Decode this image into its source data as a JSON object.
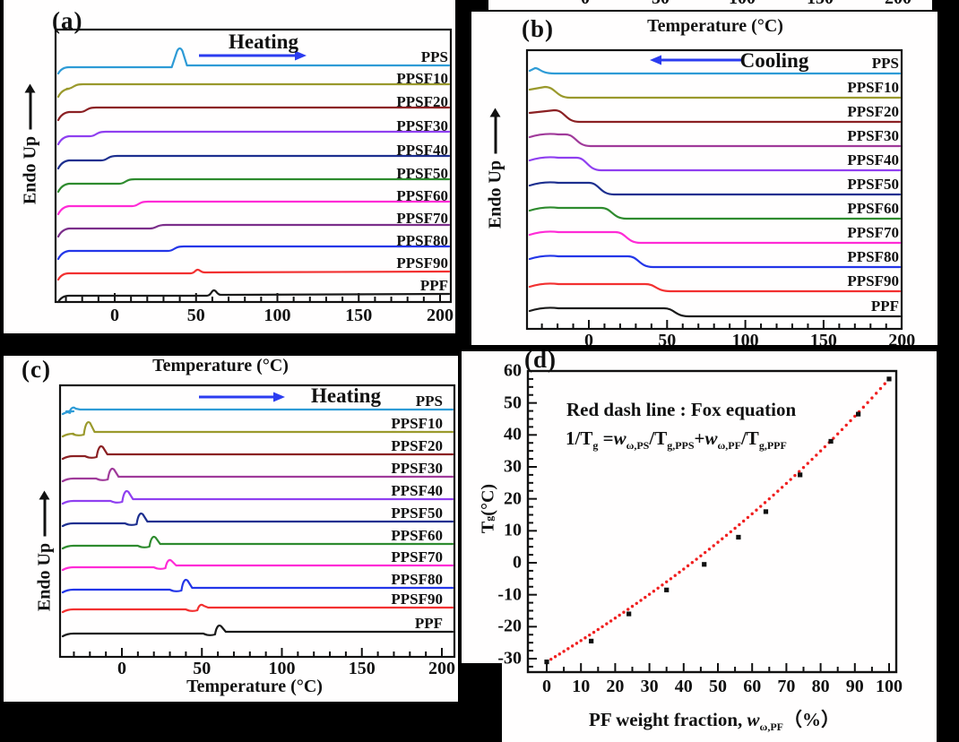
{
  "chart_data": [
    {
      "id": "a",
      "type": "line",
      "panel_label": "(a)",
      "mode": {
        "label": "Heating",
        "arrow": "right",
        "arrow_color": "#2B3CF0"
      },
      "y_axis_label": "Endo Up",
      "x_ticks": [
        0,
        50,
        100,
        150,
        200
      ],
      "x_minor_step": 10,
      "x_range": [
        -37,
        206
      ],
      "series": [
        {
          "name": "PPS",
          "color": "#2E9BD6",
          "transition_C": 40,
          "shape": "peak",
          "amp": 22
        },
        {
          "name": "PPSF10",
          "color": "#9A992C",
          "transition_C": -25,
          "shape": "step",
          "amp": 5
        },
        {
          "name": "PPSF20",
          "color": "#8B2023",
          "transition_C": -17,
          "shape": "step",
          "amp": 5
        },
        {
          "name": "PPSF30",
          "color": "#8F3FF0",
          "transition_C": -11,
          "shape": "step",
          "amp": 5
        },
        {
          "name": "PPSF40",
          "color": "#1D2F8F",
          "transition_C": -4,
          "shape": "step",
          "amp": 5
        },
        {
          "name": "PPSF50",
          "color": "#2E8B2E",
          "transition_C": 7,
          "shape": "step",
          "amp": 5
        },
        {
          "name": "PPSF60",
          "color": "#FF2BD6",
          "transition_C": 15,
          "shape": "step",
          "amp": 5
        },
        {
          "name": "PPSF70",
          "color": "#7B2E8A",
          "transition_C": 26,
          "shape": "step",
          "amp": 4
        },
        {
          "name": "PPSF80",
          "color": "#2336E8",
          "transition_C": 37,
          "shape": "step",
          "amp": 5
        },
        {
          "name": "PPSF90",
          "color": "#F23030",
          "transition_C": 51,
          "shape": "bump",
          "amp": 4
        },
        {
          "name": "PPF",
          "color": "#1A1A1A",
          "transition_C": 61,
          "shape": "bump",
          "amp": 6
        }
      ]
    },
    {
      "id": "b",
      "type": "line",
      "panel_label": "(b)",
      "top_title": "Temperature (°C)",
      "cropped_top_tick_labels": [
        "0",
        "50",
        "100",
        "150",
        "200"
      ],
      "mode": {
        "label": "Cooling",
        "arrow": "left",
        "arrow_color": "#2B3CF0"
      },
      "y_axis_label": "Endo Up",
      "x_ticks": [
        0,
        50,
        100,
        150,
        200
      ],
      "x_minor_step": 10,
      "x_range": [
        -41,
        200
      ],
      "series": [
        {
          "name": "PPS",
          "color": "#2E9BD6",
          "transition_C": -30,
          "shape": "cool",
          "amp": 6
        },
        {
          "name": "PPSF10",
          "color": "#9A992C",
          "transition_C": -20,
          "shape": "cool",
          "amp": 12
        },
        {
          "name": "PPSF20",
          "color": "#8B2023",
          "transition_C": -14,
          "shape": "cool",
          "amp": 13
        },
        {
          "name": "PPSF30",
          "color": "#A03A9A",
          "transition_C": -7,
          "shape": "cool",
          "amp": 13
        },
        {
          "name": "PPSF40",
          "color": "#8F3FF0",
          "transition_C": 0,
          "shape": "cool",
          "amp": 14
        },
        {
          "name": "PPSF50",
          "color": "#1D2F8F",
          "transition_C": 8,
          "shape": "cool",
          "amp": 13
        },
        {
          "name": "PPSF60",
          "color": "#2E8B2E",
          "transition_C": 16,
          "shape": "cool",
          "amp": 12
        },
        {
          "name": "PPSF70",
          "color": "#FF2BD6",
          "transition_C": 25,
          "shape": "cool",
          "amp": 12
        },
        {
          "name": "PPSF80",
          "color": "#2336E8",
          "transition_C": 33,
          "shape": "cool",
          "amp": 12
        },
        {
          "name": "PPSF90",
          "color": "#F23030",
          "transition_C": 44,
          "shape": "cool",
          "amp": 8
        },
        {
          "name": "PPF",
          "color": "#1A1A1A",
          "transition_C": 56,
          "shape": "cool",
          "amp": 9
        }
      ]
    },
    {
      "id": "c",
      "type": "line",
      "panel_label": "(c)",
      "top_title": "Temperature (°C)",
      "x_axis_label": "Temperature (°C)",
      "mode": {
        "label": "Heating",
        "arrow": "right",
        "arrow_color": "#2B3CF0"
      },
      "y_axis_label": "Endo Up",
      "x_ticks": [
        0,
        50,
        100,
        150,
        200
      ],
      "x_minor_step": 10,
      "x_range": [
        -41,
        202
      ],
      "series": [
        {
          "name": "PPS",
          "color": "#2E9BD6",
          "transition_C": -30,
          "shape": "relax",
          "amp": 5
        },
        {
          "name": "PPSF10",
          "color": "#9A992C",
          "transition_C": -21,
          "shape": "relax",
          "amp": 14
        },
        {
          "name": "PPSF20",
          "color": "#8B2023",
          "transition_C": -13,
          "shape": "relax",
          "amp": 12
        },
        {
          "name": "PPSF30",
          "color": "#A03A9A",
          "transition_C": -6,
          "shape": "relax",
          "amp": 12
        },
        {
          "name": "PPSF40",
          "color": "#8F3FF0",
          "transition_C": 3,
          "shape": "relax",
          "amp": 12
        },
        {
          "name": "PPSF50",
          "color": "#1D2F8F",
          "transition_C": 12,
          "shape": "relax",
          "amp": 12
        },
        {
          "name": "PPSF60",
          "color": "#2E8B2E",
          "transition_C": 20,
          "shape": "relax",
          "amp": 11
        },
        {
          "name": "PPSF70",
          "color": "#FF2BD6",
          "transition_C": 30,
          "shape": "relax",
          "amp": 9
        },
        {
          "name": "PPSF80",
          "color": "#2336E8",
          "transition_C": 40,
          "shape": "relax",
          "amp": 12
        },
        {
          "name": "PPSF90",
          "color": "#F23030",
          "transition_C": 50,
          "shape": "relax",
          "amp": 6
        },
        {
          "name": "PPF",
          "color": "#1A1A1A",
          "transition_C": 61,
          "shape": "relax",
          "amp": 10
        }
      ]
    },
    {
      "id": "d",
      "type": "scatter",
      "panel_label": "(d)",
      "annotation_line1": "Red dash line : Fox equation",
      "equation": {
        "lhs": "1/T",
        "lhs_sub": "g",
        "rel": " =",
        "w1": "w",
        "w1_sub": "ω,PS",
        "d1": "/T",
        "d1_sub": "g,PPS",
        "plus": "+",
        "w2": "w",
        "w2_sub": "ω,PF",
        "d2": "/T",
        "d2_sub": "g,PPF"
      },
      "y_axis_label": {
        "base": "T",
        "sub": "g",
        "units": " (°C)"
      },
      "x_axis_label": {
        "prefix": "PF weight fraction, ",
        "sym": "w",
        "sym_sub": "ω,PF",
        "suffix": "（%）"
      },
      "x_ticks": [
        0,
        10,
        20,
        30,
        40,
        50,
        60,
        70,
        80,
        90,
        100
      ],
      "y_ticks": [
        60,
        50,
        40,
        30,
        20,
        10,
        0,
        -10,
        -20,
        -30
      ],
      "xlim": [
        -5.5,
        102
      ],
      "ylim": [
        -34.2,
        60
      ],
      "points": [
        [
          0,
          -31
        ],
        [
          13,
          -24.5
        ],
        [
          24,
          -16
        ],
        [
          35,
          -8.5
        ],
        [
          46,
          -0.5
        ],
        [
          56,
          8
        ],
        [
          64,
          16
        ],
        [
          74,
          27.5
        ],
        [
          83,
          38
        ],
        [
          91,
          46.5
        ],
        [
          100,
          57.5
        ]
      ],
      "point_color": "#101010",
      "fox": {
        "tg_pps_C": -31,
        "tg_ppf_C": 57.5,
        "color": "#F02020",
        "style": "dotted"
      }
    }
  ]
}
